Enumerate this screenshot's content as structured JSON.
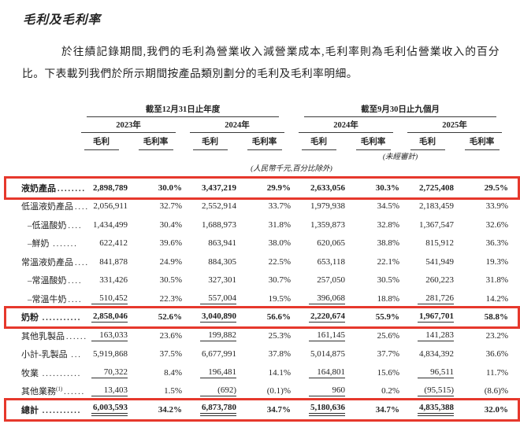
{
  "page": {
    "title": "毛利及毛利率",
    "paragraph": "於往績記錄期間,我們的毛利為營業收入減營業成本,毛利率則為毛利佔營業收入的百分比。下表載列我們於所示期間按產品類別劃分的毛利及毛利率明細。"
  },
  "colors": {
    "highlight_border": "#e6382c",
    "text": "#232323",
    "rule_line": "#3a3a3a"
  },
  "table": {
    "group_headers": [
      "截至12月31日止年度",
      "截至9月30日止九個月"
    ],
    "year_headers": [
      "2023年",
      "2024年",
      "2024年",
      "2025年"
    ],
    "column_headers": [
      "毛利",
      "毛利率",
      "毛利",
      "毛利率",
      "毛利",
      "毛利率",
      "毛利",
      "毛利率"
    ],
    "unaudited_note": "(未經審計)",
    "unit_note": "(人民幣千元,百分比除外)",
    "rows": [
      {
        "label": "液奶產品",
        "dots": "........",
        "indent": false,
        "sup": "",
        "bold": true,
        "highlight": true,
        "rule": "none",
        "values": [
          "2,898,789",
          "30.0%",
          "3,437,219",
          "29.9%",
          "2,633,056",
          "30.3%",
          "2,725,408",
          "29.5%"
        ]
      },
      {
        "label": "低溫液奶產品",
        "dots": "....",
        "indent": false,
        "sup": "",
        "bold": false,
        "highlight": false,
        "rule": "none",
        "values": [
          "2,056,911",
          "32.7%",
          "2,552,914",
          "33.7%",
          "1,979,938",
          "34.5%",
          "2,183,459",
          "33.9%"
        ]
      },
      {
        "label": "–低溫酸奶",
        "dots": "....",
        "indent": true,
        "sup": "",
        "bold": false,
        "highlight": false,
        "rule": "none",
        "values": [
          "1,434,499",
          "30.4%",
          "1,688,973",
          "31.8%",
          "1,359,873",
          "32.8%",
          "1,367,547",
          "32.6%"
        ]
      },
      {
        "label": "–鮮奶 ",
        "dots": ".......",
        "indent": true,
        "sup": "",
        "bold": false,
        "highlight": false,
        "rule": "none",
        "values": [
          "622,412",
          "39.6%",
          "863,941",
          "38.0%",
          "620,065",
          "38.8%",
          "815,912",
          "36.3%"
        ]
      },
      {
        "label": "常溫液奶產品",
        "dots": "....",
        "indent": false,
        "sup": "",
        "bold": false,
        "highlight": false,
        "rule": "none",
        "values": [
          "841,878",
          "24.9%",
          "884,305",
          "22.5%",
          "653,118",
          "22.1%",
          "541,949",
          "19.3%"
        ]
      },
      {
        "label": "–常溫酸奶",
        "dots": "....",
        "indent": true,
        "sup": "",
        "bold": false,
        "highlight": false,
        "rule": "none",
        "values": [
          "331,426",
          "30.5%",
          "327,301",
          "30.7%",
          "257,050",
          "30.5%",
          "260,223",
          "31.8%"
        ]
      },
      {
        "label": "–常溫牛奶",
        "dots": "....",
        "indent": true,
        "sup": "",
        "bold": false,
        "highlight": false,
        "rule": "single",
        "values": [
          "510,452",
          "22.3%",
          "557,004",
          "19.5%",
          "396,068",
          "18.8%",
          "281,726",
          "14.2%"
        ]
      },
      {
        "label": "奶粉 ",
        "dots": "...........",
        "indent": false,
        "sup": "",
        "bold": true,
        "highlight": true,
        "rule": "single",
        "values": [
          "2,858,046",
          "52.6%",
          "3,040,890",
          "56.6%",
          "2,220,674",
          "55.9%",
          "1,967,701",
          "58.8%"
        ]
      },
      {
        "label": "其他乳製品",
        "dots": "......",
        "indent": false,
        "sup": "",
        "bold": false,
        "highlight": false,
        "rule": "single",
        "values": [
          "163,033",
          "23.6%",
          "199,882",
          "25.3%",
          "161,145",
          "25.6%",
          "141,283",
          "23.2%"
        ]
      },
      {
        "label": "小計-乳製品 ",
        "dots": "...",
        "indent": false,
        "sup": "",
        "bold": false,
        "highlight": false,
        "rule": "none",
        "values": [
          "5,919,868",
          "37.5%",
          "6,677,991",
          "37.8%",
          "5,014,875",
          "37.7%",
          "4,834,392",
          "36.6%"
        ]
      },
      {
        "label": "牧業 ",
        "dots": "...........",
        "indent": false,
        "sup": "",
        "bold": false,
        "highlight": false,
        "rule": "single",
        "values": [
          "70,322",
          "8.4%",
          "196,481",
          "14.1%",
          "164,801",
          "15.6%",
          "96,511",
          "11.7%"
        ]
      },
      {
        "label": "其他業務",
        "dots": "......",
        "indent": false,
        "sup": "(1)",
        "bold": false,
        "highlight": false,
        "rule": "single",
        "values": [
          "13,403",
          "1.5%",
          "(692)",
          "(0.1)%",
          "960",
          "0.2%",
          "(95,515)",
          "(8.6)%"
        ]
      },
      {
        "label": "總計 ",
        "dots": "...........",
        "indent": false,
        "sup": "",
        "bold": true,
        "highlight": true,
        "rule": "double",
        "values": [
          "6,003,593",
          "34.2%",
          "6,873,780",
          "34.7%",
          "5,180,636",
          "34.7%",
          "4,835,388",
          "32.0%"
        ]
      }
    ]
  }
}
